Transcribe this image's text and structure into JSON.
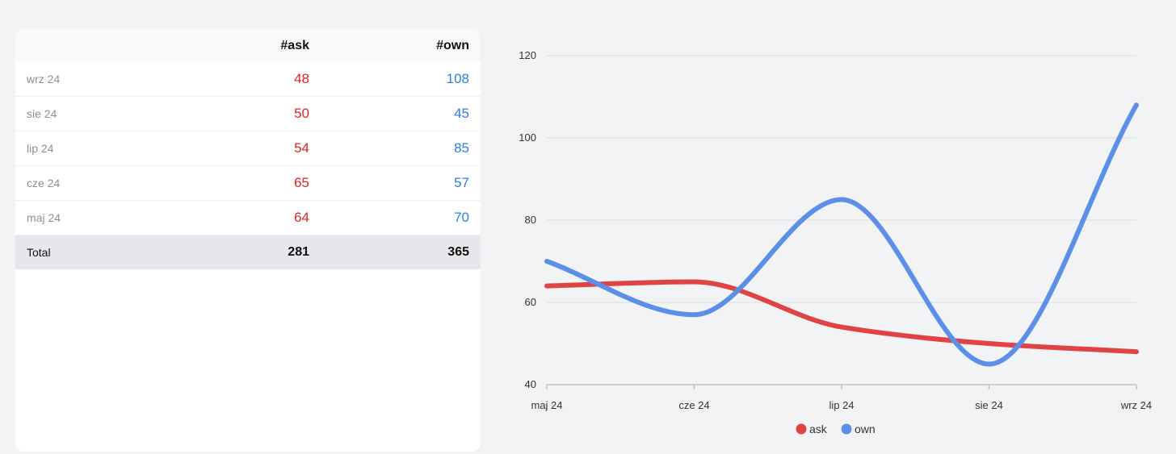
{
  "table": {
    "headers": {
      "label": "",
      "ask": "#ask",
      "own": "#own"
    },
    "rows": [
      {
        "label": "wrz 24",
        "ask": "48",
        "own": "108"
      },
      {
        "label": "sie 24",
        "ask": "50",
        "own": "45"
      },
      {
        "label": "lip 24",
        "ask": "54",
        "own": "85"
      },
      {
        "label": "cze 24",
        "ask": "65",
        "own": "57"
      },
      {
        "label": "maj 24",
        "ask": "64",
        "own": "70"
      }
    ],
    "total": {
      "label": "Total",
      "ask": "281",
      "own": "365"
    }
  },
  "colors": {
    "ask": "#e04343",
    "own": "#5b8fe8",
    "grid": "#dcdde0",
    "axis": "#bfc1c5"
  },
  "chart_data": {
    "type": "line",
    "categories": [
      "maj 24",
      "cze 24",
      "lip 24",
      "sie 24",
      "wrz 24"
    ],
    "series": [
      {
        "name": "ask",
        "values": [
          64,
          65,
          54,
          50,
          48
        ]
      },
      {
        "name": "own",
        "values": [
          70,
          57,
          85,
          45,
          108
        ]
      }
    ],
    "title": "",
    "xlabel": "",
    "ylabel": "",
    "ylim": [
      40,
      120
    ],
    "yticks": [
      40,
      60,
      80,
      100,
      120
    ],
    "grid": true,
    "legend": "bottom"
  }
}
